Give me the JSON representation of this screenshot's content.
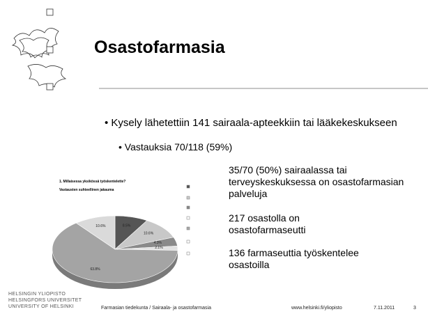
{
  "header": {
    "title": "Osastofarmasia"
  },
  "bullets": [
    "Kysely lähetettiin 141 sairaala-apteekkiin tai lääkekeskukseen",
    "Vastauksia 70/118 (59%)"
  ],
  "details": [
    "35/70 (50%) sairaalassa tai terveyskeskuksessa on osastofarmasian palveluja",
    "217 osastolla on osastofarmaseutti",
    "136 farmaseuttia työskentelee osastoilla"
  ],
  "chart": {
    "type": "pie",
    "title": "1. Millaisessa yksikössä työskentelette?",
    "subtitle": "Vastausten suhteellinen jakauma",
    "values": [
      8.5,
      10.6,
      4.3,
      2.1,
      63.8,
      10.6
    ],
    "value_labels": [
      "8.5%",
      "10.6%",
      "4.3%",
      "2.1%",
      "63.8%",
      "10.6%"
    ],
    "colors": [
      "#555555",
      "#c8c8c8",
      "#8a8a8a",
      "#e2e2e2",
      "#a4a4a4",
      "#dadada"
    ]
  },
  "footer": {
    "university": [
      "HELSINGIN YLIOPISTO",
      "HELSINGFORS UNIVERSITET",
      "UNIVERSITY OF HELSINKI"
    ],
    "department": "Farmasian tiedekunta / Sairaala- ja osastofarmasia",
    "url": "www.helsinki.fi/yliopisto",
    "date": "7.11.2011",
    "page": "3"
  }
}
